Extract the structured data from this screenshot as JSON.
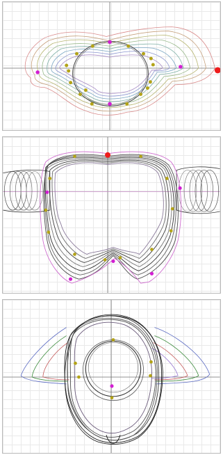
{
  "panels": [
    {
      "id": "top",
      "line_colors": [
        "#d98a8a",
        "#c6a07c",
        "#b6b56f",
        "#98b98a",
        "#7fb0a6",
        "#78a5c2",
        "#8a95cf",
        "#a68ac4",
        "#c28ab0",
        "#d8a0a0",
        "#9dbf9b",
        "#9ab0d8",
        "#c9b27a",
        "#b09ad0"
      ],
      "markers": {
        "control": {
          "color": "#b3a318",
          "count": 16
        },
        "key": {
          "color": "#d21fd2",
          "count": 4
        },
        "active": {
          "color": "#ee1c1c",
          "count": 1
        }
      }
    },
    {
      "id": "mid",
      "line_colors": [
        "#4a4a4a",
        "#5f5f5f",
        "#2f2f2f",
        "#767676",
        "#3c3c3c",
        "#6a6a6a",
        "#8a7a9a",
        "#7a9a8a",
        "#9a8a7a",
        "#6a7a9a",
        "#a07aa0",
        "#b0b0b0",
        "#7aa07a",
        "#c0a0c0"
      ],
      "markers": {
        "control": {
          "color": "#b3a318",
          "count": 12
        },
        "key": {
          "color": "#d21fd2",
          "count": 5
        },
        "active": {
          "color": "#ee1c1c",
          "count": 1
        }
      }
    },
    {
      "id": "bot",
      "line_colors": [
        "#1a1a1a",
        "#3a3a3a",
        "#5a5a5a",
        "#2a2a2a",
        "#4a4a4a",
        "#6a5a7a",
        "#5a7a6a",
        "#7a6a5a",
        "#4a6a9a",
        "#9a4a6a",
        "#6a9a4a",
        "#8a8ab0",
        "#b08a8a",
        "#8ab08a"
      ],
      "markers": {
        "control": {
          "color": "#b3a318",
          "count": 6
        },
        "key": {
          "color": "#d21fd2",
          "count": 1
        },
        "active": {
          "color": "#ee1c1c",
          "count": 0
        }
      }
    }
  ],
  "axes_color": "#6f6f6f",
  "grid_color": "#e9e9e9"
}
